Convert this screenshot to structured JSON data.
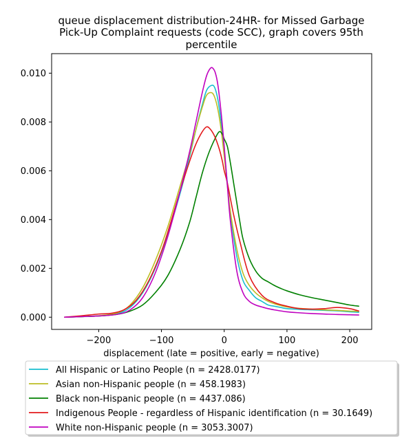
{
  "chart_data": {
    "type": "line",
    "title_lines": [
      "queue displacement distribution-24HR-  for Missed Garbage",
      "Pick-Up Complaint  requests (code SCC), graph covers 95th",
      "percentile"
    ],
    "xlabel": "displacement (late = positive, early = negative)",
    "ylabel": "",
    "xlim": [
      -275,
      235
    ],
    "ylim": [
      -0.0005,
      0.0108
    ],
    "x_ticks": [
      -200,
      -100,
      0,
      100,
      200
    ],
    "x_tick_labels": [
      "−200",
      "−100",
      "0",
      "100",
      "200"
    ],
    "y_ticks": [
      0.0,
      0.002,
      0.004,
      0.006,
      0.008,
      0.01
    ],
    "y_tick_labels": [
      "0.000",
      "0.002",
      "0.004",
      "0.006",
      "0.008",
      "0.010"
    ],
    "grid": false,
    "legend_position": "below the plot",
    "series": [
      {
        "name": "All Hispanic or Latino People (n = 2428.0177)",
        "color": "#17becf",
        "x": [
          -255,
          -200,
          -170,
          -150,
          -130,
          -110,
          -90,
          -70,
          -55,
          -45,
          -35,
          -28,
          -20,
          -15,
          -10,
          -5,
          0,
          5,
          10,
          20,
          30,
          40,
          50,
          60,
          70,
          80,
          90,
          100,
          120,
          140,
          160,
          180,
          200,
          215
        ],
        "y": [
          0.0,
          5e-05,
          0.00015,
          0.0004,
          0.001,
          0.002,
          0.0034,
          0.0051,
          0.0066,
          0.0077,
          0.0087,
          0.0093,
          0.0095,
          0.0094,
          0.0089,
          0.008,
          0.0068,
          0.0055,
          0.0042,
          0.0025,
          0.0015,
          0.0011,
          0.0008,
          0.00065,
          0.0005,
          0.00045,
          0.0004,
          0.00035,
          0.00032,
          0.0003,
          0.00028,
          0.00026,
          0.00022,
          0.0002
        ]
      },
      {
        "name": "Asian non-Hispanic people (n = 458.1983)",
        "color": "#bcbd22",
        "x": [
          -255,
          -200,
          -170,
          -150,
          -130,
          -110,
          -90,
          -70,
          -55,
          -45,
          -35,
          -28,
          -20,
          -15,
          -10,
          -5,
          0,
          5,
          10,
          20,
          30,
          40,
          50,
          60,
          70,
          80,
          90,
          100,
          120,
          140,
          160,
          180,
          200,
          215
        ],
        "y": [
          0.0,
          6e-05,
          0.00018,
          0.0005,
          0.0012,
          0.0023,
          0.0037,
          0.0054,
          0.0067,
          0.0077,
          0.0086,
          0.0091,
          0.0092,
          0.009,
          0.0085,
          0.0077,
          0.0066,
          0.0054,
          0.0043,
          0.0028,
          0.0018,
          0.0013,
          0.001,
          0.0008,
          0.00065,
          0.00055,
          0.00048,
          0.00042,
          0.00036,
          0.00033,
          0.0003,
          0.00028,
          0.00025,
          0.00024
        ]
      },
      {
        "name": "Black non-Hispanic people (n = 4437.086)",
        "color": "#008000",
        "x": [
          -255,
          -200,
          -170,
          -150,
          -130,
          -110,
          -90,
          -70,
          -55,
          -45,
          -35,
          -25,
          -15,
          -8,
          -3,
          0,
          5,
          10,
          15,
          20,
          25,
          30,
          40,
          50,
          60,
          70,
          80,
          90,
          100,
          120,
          140,
          160,
          180,
          200,
          215
        ],
        "y": [
          0.0,
          5e-05,
          0.00012,
          0.00025,
          0.0005,
          0.001,
          0.0017,
          0.0028,
          0.0039,
          0.0049,
          0.0059,
          0.0067,
          0.0073,
          0.0076,
          0.0075,
          0.0073,
          0.007,
          0.0063,
          0.0055,
          0.0047,
          0.0039,
          0.0032,
          0.0024,
          0.0019,
          0.0016,
          0.00145,
          0.0013,
          0.00118,
          0.00108,
          0.00092,
          0.0008,
          0.0007,
          0.0006,
          0.0005,
          0.00045
        ]
      },
      {
        "name": "Indigenous People - regardless of Hispanic identification (n = 30.1649)",
        "color": "#e31a1c",
        "x": [
          -255,
          -230,
          -200,
          -180,
          -160,
          -140,
          -120,
          -100,
          -85,
          -70,
          -55,
          -45,
          -35,
          -28,
          -22,
          -15,
          -8,
          -3,
          0,
          5,
          15,
          25,
          40,
          60,
          80,
          100,
          120,
          140,
          160,
          180,
          200,
          215
        ],
        "y": [
          0.0,
          5e-05,
          0.00013,
          0.00016,
          0.0003,
          0.0007,
          0.0015,
          0.0027,
          0.0039,
          0.0052,
          0.0064,
          0.0071,
          0.0076,
          0.0078,
          0.0077,
          0.0074,
          0.0069,
          0.0064,
          0.006,
          0.0055,
          0.0042,
          0.0031,
          0.0017,
          0.0009,
          0.0006,
          0.00045,
          0.00035,
          0.00033,
          0.00035,
          0.0004,
          0.00035,
          0.00025
        ]
      },
      {
        "name": "White non-Hispanic people (n = 3053.3007)",
        "color": "#bf00bf",
        "x": [
          -255,
          -200,
          -170,
          -150,
          -130,
          -110,
          -90,
          -70,
          -55,
          -45,
          -35,
          -28,
          -22,
          -18,
          -14,
          -10,
          -5,
          0,
          5,
          10,
          20,
          30,
          40,
          50,
          60,
          70,
          80,
          100,
          120,
          140,
          160,
          180,
          200,
          215
        ],
        "y": [
          0.0,
          5e-05,
          0.00012,
          0.0003,
          0.0008,
          0.0018,
          0.0033,
          0.0052,
          0.0068,
          0.008,
          0.0092,
          0.0099,
          0.0102,
          0.0102,
          0.01,
          0.0095,
          0.0084,
          0.007,
          0.0054,
          0.0039,
          0.0019,
          0.001,
          0.00065,
          0.0005,
          0.00042,
          0.00035,
          0.0003,
          0.00022,
          0.00018,
          0.00015,
          0.00013,
          0.00011,
          0.0001,
          9e-05
        ]
      }
    ]
  }
}
